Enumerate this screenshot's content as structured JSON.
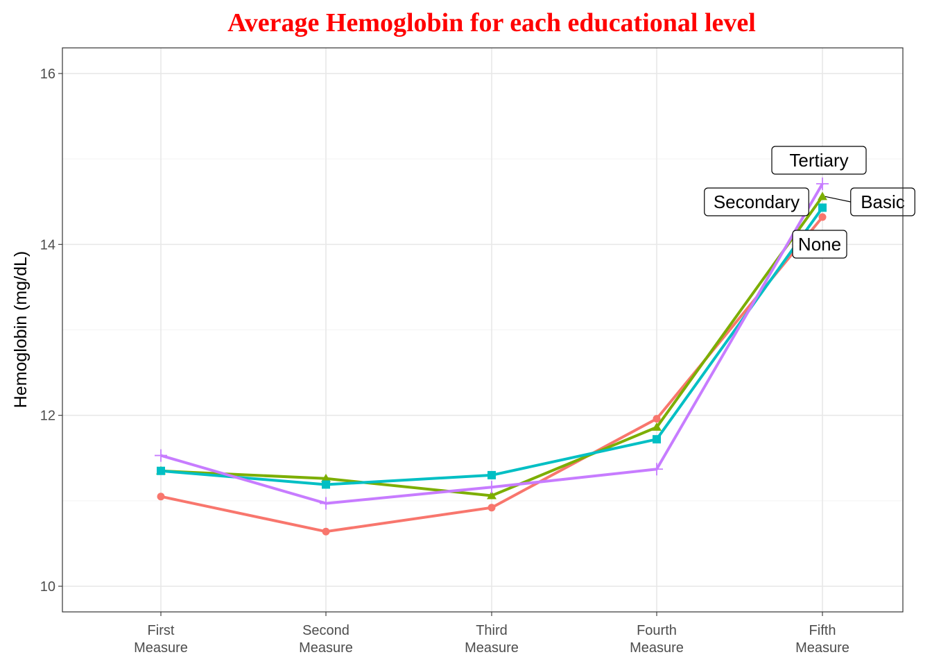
{
  "chart_data": {
    "type": "line",
    "title": "Average Hemoglobin for each educational level",
    "xlabel": "",
    "ylabel": "Hemoglobin (mg/dL)",
    "categories": [
      [
        "First",
        "Measure"
      ],
      [
        "Second",
        "Measure"
      ],
      [
        "Third",
        "Measure"
      ],
      [
        "Fourth",
        "Measure"
      ],
      [
        "Fifth",
        "Measure"
      ]
    ],
    "ylim": [
      9.7,
      16.3
    ],
    "yticks": [
      10,
      12,
      14,
      16
    ],
    "grid": true,
    "legend": "none",
    "series": [
      {
        "name": "None",
        "color": "#F8766D",
        "marker": "circle",
        "values": [
          11.05,
          10.64,
          10.92,
          11.96,
          14.32
        ]
      },
      {
        "name": "Basic",
        "color": "#7CAE00",
        "marker": "triangle",
        "values": [
          11.35,
          11.26,
          11.06,
          11.86,
          14.56
        ]
      },
      {
        "name": "Secondary",
        "color": "#00BFC4",
        "marker": "square",
        "values": [
          11.35,
          11.19,
          11.3,
          11.72,
          14.43
        ]
      },
      {
        "name": "Tertiary",
        "color": "#C77CFF",
        "marker": "plus",
        "values": [
          11.53,
          10.97,
          11.16,
          11.37,
          14.71
        ]
      }
    ],
    "labels_text": {
      "None": "None",
      "Basic": "Basic",
      "Secondary": "Secondary",
      "Tertiary": "Tertiary"
    }
  }
}
